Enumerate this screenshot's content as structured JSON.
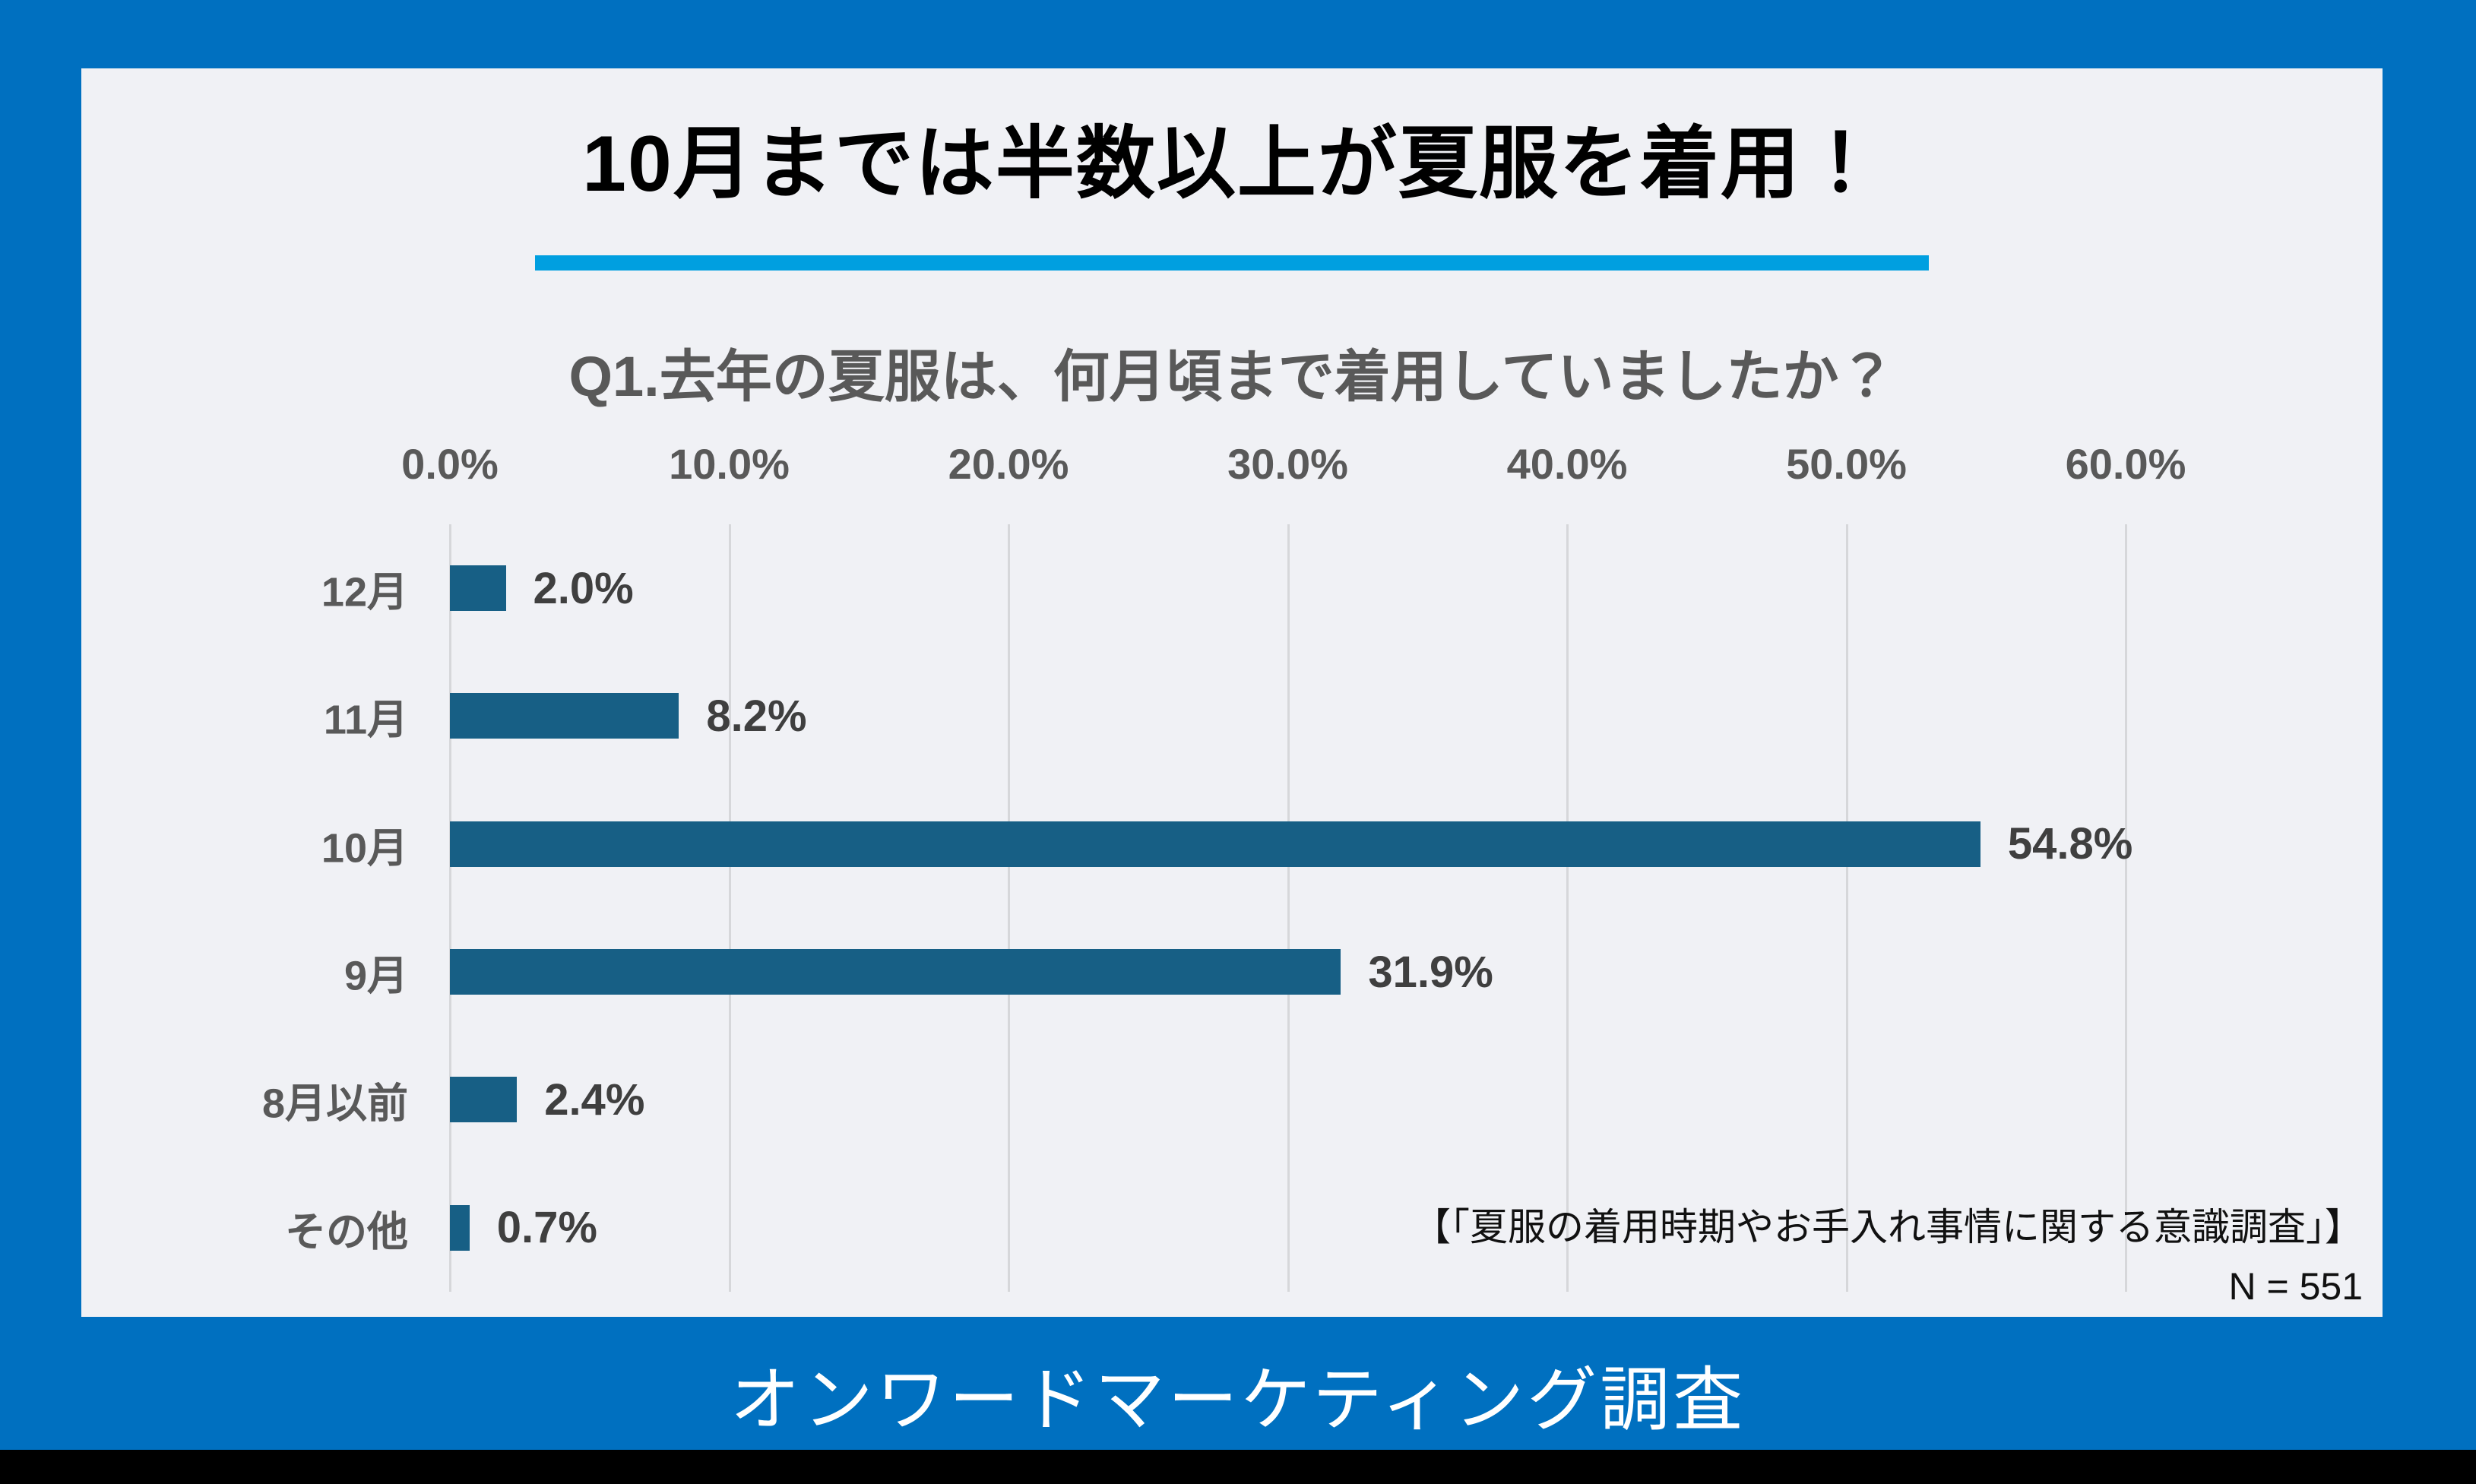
{
  "header": {
    "title": "10月までは半数以上が夏服を着用！"
  },
  "chart_data": {
    "type": "bar",
    "orientation": "horizontal",
    "title": "Q1.去年の夏服は、何月頃まで着用していましたか？",
    "categories": [
      "12月",
      "11月",
      "10月",
      "9月",
      "8月以前",
      "その他"
    ],
    "values": [
      2.0,
      8.2,
      54.8,
      31.9,
      2.4,
      0.7
    ],
    "value_labels": [
      "2.0%",
      "8.2%",
      "54.8%",
      "31.9%",
      "2.4%",
      "0.7%"
    ],
    "x_ticks": [
      "0.0%",
      "10.0%",
      "20.0%",
      "30.0%",
      "40.0%",
      "50.0%",
      "60.0%"
    ],
    "xlim": [
      0,
      60
    ],
    "grid": true,
    "legend": "none",
    "sample_size_label": "N = 551"
  },
  "footnote": {
    "line1": "【「夏服の着用時期やお手入れ事情に関する意識調査」】",
    "line2": "N = 551"
  },
  "footer": {
    "caption": "オンワードマーケティング調査"
  },
  "colors": {
    "background_blue": "#0070C0",
    "card_background": "#F0F1F5",
    "title_underline": "#009FE0",
    "bar_fill": "#175F85",
    "gridline": "#D6D7DA",
    "label_gray": "#595959",
    "bottom_bar": "#000000"
  }
}
